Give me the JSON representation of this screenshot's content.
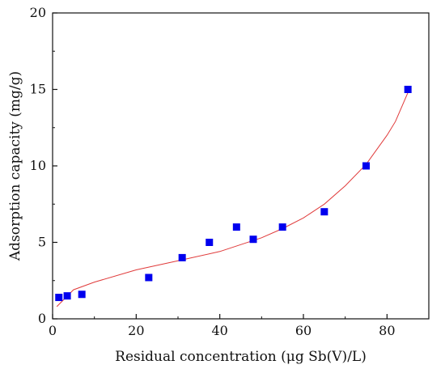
{
  "chart_data": {
    "type": "scatter",
    "title": "",
    "xlabel": "Residual concentration (μg Sb(V)/L)",
    "ylabel": "Adsorption capacity (mg/g)",
    "xlim": [
      0,
      90
    ],
    "ylim": [
      0,
      20
    ],
    "x_ticks": [
      0,
      20,
      40,
      60,
      80
    ],
    "y_ticks": [
      0,
      5,
      10,
      15,
      20
    ],
    "x_tick_labels": [
      "0",
      "20",
      "40",
      "60",
      "80"
    ],
    "y_tick_labels": [
      "0",
      "5",
      "10",
      "15",
      "20"
    ],
    "grid": false,
    "legend": "none",
    "series": [
      {
        "kind": "points",
        "color": "#0000ee",
        "marker": "square",
        "x": [
          1.5,
          3.5,
          7,
          23,
          31,
          37.5,
          44,
          48,
          55,
          65,
          75,
          85
        ],
        "y": [
          1.4,
          1.5,
          1.6,
          2.7,
          4.0,
          5.0,
          6.0,
          5.2,
          6.0,
          7.0,
          10.0,
          15.0
        ]
      },
      {
        "kind": "fitted-line",
        "color": "#e03a3a",
        "x": [
          1,
          5,
          10,
          20,
          30,
          40,
          50,
          55,
          60,
          65,
          70,
          75,
          80,
          82,
          85
        ],
        "y": [
          0.8,
          1.9,
          2.4,
          3.2,
          3.8,
          4.4,
          5.3,
          5.9,
          6.6,
          7.5,
          8.7,
          10.1,
          12.0,
          12.9,
          14.8
        ]
      }
    ]
  }
}
